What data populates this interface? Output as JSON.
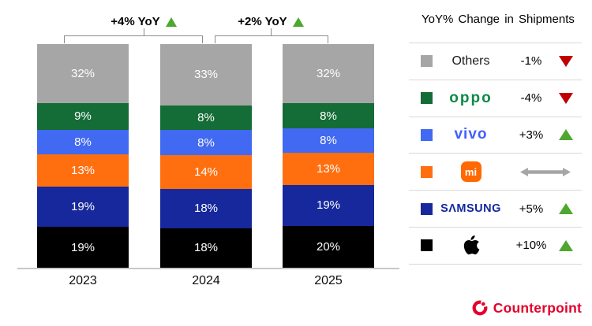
{
  "chart_data": {
    "type": "bar",
    "stacked": true,
    "title": "",
    "categories": [
      "2023",
      "2024",
      "2025"
    ],
    "unit": "%",
    "series": [
      {
        "name": "Others",
        "color": "#a6a6a6",
        "values": [
          32,
          33,
          32
        ]
      },
      {
        "name": "OPPO",
        "color": "#146c36",
        "values": [
          9,
          8,
          8
        ]
      },
      {
        "name": "vivo",
        "color": "#4169f1",
        "values": [
          8,
          8,
          8
        ]
      },
      {
        "name": "Xiaomi",
        "color": "#ff6f10",
        "values": [
          13,
          14,
          13
        ]
      },
      {
        "name": "Samsung",
        "color": "#16289c",
        "values": [
          19,
          18,
          19
        ]
      },
      {
        "name": "Apple",
        "color": "#000000",
        "values": [
          19,
          18,
          20
        ]
      }
    ],
    "annotations": [
      {
        "label": "+4% YoY",
        "direction": "up",
        "over_category": "2024"
      },
      {
        "label": "+2% YoY",
        "direction": "up",
        "over_category": "2025"
      }
    ],
    "legend_position": "right",
    "grid": false,
    "ylim": [
      0,
      100
    ]
  },
  "legend": {
    "title": "YoY% Change in Shipments",
    "rows": [
      {
        "brand": "Others",
        "logo_style": "others",
        "logo_text": "Others",
        "swatch": "#a6a6a6",
        "change": "-1%",
        "trend": "down"
      },
      {
        "brand": "OPPO",
        "logo_style": "oppo",
        "logo_text": "oppo",
        "swatch": "#146c36",
        "change": "-4%",
        "trend": "down"
      },
      {
        "brand": "vivo",
        "logo_style": "vivo",
        "logo_text": "vivo",
        "swatch": "#4169f1",
        "change": "+3%",
        "trend": "up"
      },
      {
        "brand": "Xiaomi",
        "logo_style": "xiaomi",
        "logo_text": "mi",
        "swatch": "#ff6f10",
        "change": "",
        "trend": "flat"
      },
      {
        "brand": "Samsung",
        "logo_style": "samsung",
        "logo_text": "SΛMSUNG",
        "swatch": "#16289c",
        "change": "+5%",
        "trend": "up"
      },
      {
        "brand": "Apple",
        "logo_style": "apple",
        "logo_text": "",
        "swatch": "#000000",
        "change": "+10%",
        "trend": "up"
      }
    ]
  },
  "branding": {
    "logo_text": "Counterpoint",
    "color": "#e4002b"
  },
  "colors": {
    "trend_up": "#4ea72e",
    "trend_down": "#c00000",
    "trend_flat": "#a6a6a6",
    "bracket": "#8c8c8c",
    "divider": "#d9d9d9",
    "axis": "#c8c8c8"
  }
}
